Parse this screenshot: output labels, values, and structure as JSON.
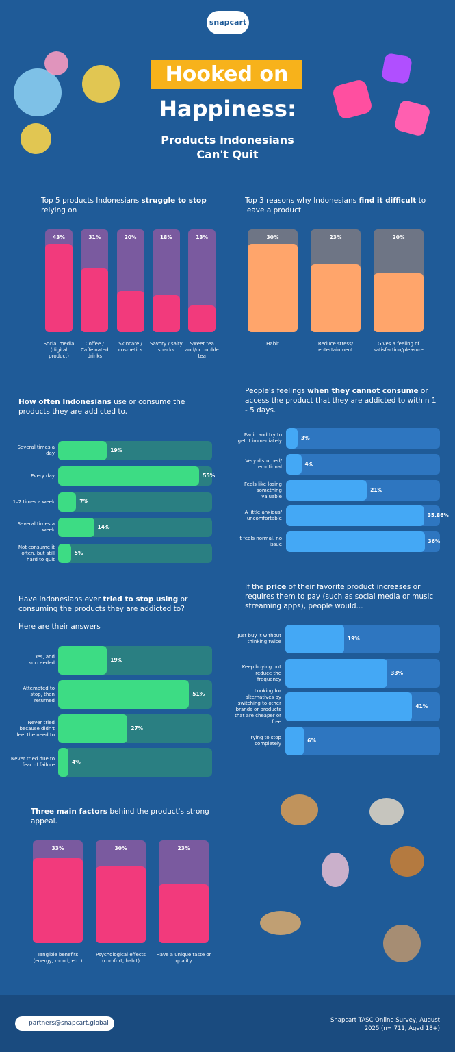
{
  "header": {
    "logo": "snapcart",
    "title_line1": "Hooked on",
    "title_line2": "Happiness:",
    "subtitle": "Products Indonesians Can't Quit"
  },
  "chart_data": [
    {
      "type": "bar",
      "title": [
        {
          "text": "Top 5 products Indonesians ",
          "bold": false
        },
        {
          "text": "struggle to stop",
          "bold": true
        },
        {
          "text": " relying on",
          "bold": false
        }
      ],
      "categories": [
        "Social media (digital product)",
        "Coffee / Caffeinated drinks",
        "Skincare / cosmetics",
        "Savory / salty snacks",
        "Sweet tea and/or bubble tea"
      ],
      "values": [
        43,
        31,
        20,
        18,
        13
      ],
      "value_labels": [
        "43%",
        "31%",
        "20%",
        "18%",
        "13%"
      ],
      "ylim": [
        0,
        50
      ],
      "color": "#f23a7c",
      "track_color": "#7a5a9f"
    },
    {
      "type": "bar",
      "title": [
        {
          "text": "Top 3 reasons why Indonesians ",
          "bold": false
        },
        {
          "text": "find it difficult",
          "bold": true
        },
        {
          "text": " to leave a product",
          "bold": false
        }
      ],
      "categories": [
        "Habit",
        "Reduce stress/ entertainment",
        "Gives a feeling of satisfaction/pleasure"
      ],
      "values": [
        30,
        23,
        20
      ],
      "value_labels": [
        "30%",
        "23%",
        "20%"
      ],
      "ylim": [
        0,
        35
      ],
      "color": "#ffa56b",
      "track_color": "#6e7585"
    },
    {
      "type": "hbar",
      "title": [
        {
          "text": "How often Indonesians",
          "bold": true
        },
        {
          "text": " use or consume the products they are addicted to.",
          "bold": false
        }
      ],
      "categories": [
        "Several times a day",
        "Every day",
        "1–2 times a week",
        "Several times a week",
        "Not consume it often, but still hard to quit"
      ],
      "values": [
        19,
        55,
        7,
        14,
        5
      ],
      "value_labels": [
        "19%",
        "55%",
        "7%",
        "14%",
        "5%"
      ],
      "xlim": [
        0,
        60
      ],
      "color": "#3ddc84",
      "track_color": "#2a7f82"
    },
    {
      "type": "hbar",
      "title": [
        {
          "text": "People's feelings ",
          "bold": false
        },
        {
          "text": "when they cannot consume",
          "bold": true
        },
        {
          "text": " or access the product that they are addicted to within 1 - 5 days.",
          "bold": false
        }
      ],
      "categories": [
        "Panic and try to get it immediately",
        "Very disturbed/ emotional",
        "Feels like losing something valuable",
        "A little anxious/ uncomfortable",
        "It feels normal, no issue"
      ],
      "values": [
        3,
        4,
        21,
        35.86,
        36
      ],
      "value_labels": [
        "3%",
        "4%",
        "21%",
        "35.86%",
        "36%"
      ],
      "xlim": [
        0,
        40
      ],
      "color": "#44a8f5",
      "track_color": "#2e76c0"
    },
    {
      "type": "hbar",
      "title": [
        {
          "text": "Have Indonesians ever ",
          "bold": false
        },
        {
          "text": "tried to stop using",
          "bold": true
        },
        {
          "text": " or consuming the products they are addicted to?",
          "bold": false
        }
      ],
      "subtitle": "Here are their answers",
      "categories": [
        "Yes, and succeeded",
        "Attempted to stop, then returned",
        "Never tried because didn't feel the need to",
        "Never tried due to fear of failure"
      ],
      "values": [
        19,
        51,
        27,
        4
      ],
      "value_labels": [
        "19%",
        "51%",
        "27%",
        "4%"
      ],
      "xlim": [
        0,
        60
      ],
      "color": "#3ddc84",
      "track_color": "#2a7f82"
    },
    {
      "type": "hbar",
      "title": [
        {
          "text": "If the ",
          "bold": false
        },
        {
          "text": "price",
          "bold": true
        },
        {
          "text": " of their favorite product increases or requires them to pay (such as social media or music streaming apps), people would...",
          "bold": false
        }
      ],
      "categories": [
        "Just buy it without thinking twice",
        "Keep buying but reduce the frequency",
        "Looking for alternatives by switching to other brands or products that are cheaper or free",
        "Trying to stop completely"
      ],
      "values": [
        19,
        33,
        41,
        6
      ],
      "value_labels": [
        "19%",
        "33%",
        "41%",
        "6%"
      ],
      "xlim": [
        0,
        50
      ],
      "color": "#44a8f5",
      "track_color": "#2e76c0"
    },
    {
      "type": "bar",
      "title": [
        {
          "text": "Three main factors",
          "bold": true
        },
        {
          "text": " behind the product's strong appeal.",
          "bold": false
        }
      ],
      "categories": [
        "Tangible benefits (energy, mood, etc.)",
        "Psychological effects (comfort, habit)",
        "Have a unique taste or quality"
      ],
      "values": [
        33,
        30,
        23
      ],
      "value_labels": [
        "33%",
        "30%",
        "23%"
      ],
      "ylim": [
        0,
        40
      ],
      "color": "#f23a7c",
      "track_color": "#7a5a9f"
    }
  ],
  "footer": {
    "email": "partners@snapcart.global",
    "source": "Snapcart TASC Online Survey, August 2025 (n= 711, Aged 18+)"
  }
}
